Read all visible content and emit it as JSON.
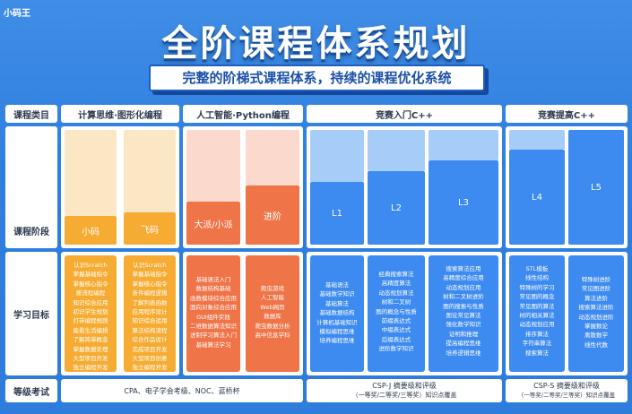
{
  "logo": "小码王",
  "title": "全阶课程体系规划",
  "subtitle": "完整的阶梯式课程体系，持续的课程优化系统",
  "row_labels": {
    "category": "课程类目",
    "stage": "课程阶段",
    "goal": "学习目标",
    "exam": "等级考试"
  },
  "categories": [
    "计算思维·图形化编程",
    "人工智能·Python编程",
    "竞赛入门C++",
    "竞赛提高C++"
  ],
  "stages": [
    "小码",
    "飞码",
    "大派/小派",
    "进阶",
    "L1",
    "L2",
    "L3",
    "L4",
    "L5"
  ],
  "goals": {
    "xiaoma": [
      "认识Scratch",
      "掌握基础指令",
      "掌握核心指令",
      "按流程编程",
      "知识综合应用",
      "初识学生规划",
      "灯带编程规则",
      "能看生活编辑",
      "了解简单概念",
      "掌握数据处理",
      "大型项目开发",
      "独立编程开发"
    ],
    "feima": [
      "认识Scratch",
      "掌握基础指令",
      "掌握核心指令",
      "条件编程逻辑",
      "了解列表函数",
      "应用程序设计",
      "知识综合运用",
      "算法结构流程",
      "综合作品设计",
      "完成项目开发",
      "大型项目创意",
      "独立编程开发"
    ],
    "dapai": [
      "基础语法入门",
      "数据结构基础",
      "函数模块综合应用",
      "面向对象综合应用",
      "GUI组件实践",
      "二维数据算法知识",
      "进制学习算法入门",
      "基础算法学习"
    ],
    "jinjie": [
      "爬虫游戏",
      "人工智能",
      "Web网页",
      "数据库",
      "爬虫数据分析",
      "高中信息学科"
    ],
    "l1": [
      "基础语法",
      "基础数学知识",
      "基础算法",
      "基础数据结构",
      "计算机基础知识",
      "模拟编程思维",
      "培养编程思维"
    ],
    "l2": [
      "经典搜索算法",
      "高精度算法",
      "动态规划算法",
      "树和二叉树",
      "图的概念与性质",
      "前缀表达式",
      "中缀表达式",
      "后缀表达式",
      "进阶数学知识"
    ],
    "l3": [
      "搜索算法应用",
      "高精度综合应用",
      "动态规划应用",
      "树和二叉树进阶",
      "图的搜索与性质",
      "图论常见算法",
      "强化数学知识",
      "证明和推理",
      "提高编程思维",
      "培养逻辑思维"
    ],
    "l4": [
      "STL模板",
      "线性结构",
      "特殊树的学习",
      "常见图的概念",
      "常见图的算法",
      "树的相关算法",
      "动态规划应用",
      "排序算法",
      "字符串算法",
      "搜索算法"
    ],
    "l5": [
      "特殊树进阶",
      "常见图进阶",
      "算法进阶",
      "搜索算法进阶",
      "动态规划进阶",
      "掌握数论",
      "离散数学",
      "线性代数"
    ]
  },
  "exams": {
    "block1": "CPA、电子学会考级、NOC、蓝桥杯",
    "block2_line1": "CSP-J 摘要级和评级",
    "block2_line2": "（一等奖/二等奖/三等奖）知识点覆盖",
    "block3_line1": "CSP-S 摘要级和评级",
    "block3_line2": "（一等奖/二等奖/三等奖）知识点覆盖"
  },
  "colors": {
    "bg": "#2f7fe0",
    "orange": "#f6ac33",
    "orange_light": "#fce7c5",
    "coral": "#ef7448",
    "coral_light": "#fbd9cc",
    "blue": "#3d8af0",
    "blue_light": "#a6ccf8"
  }
}
